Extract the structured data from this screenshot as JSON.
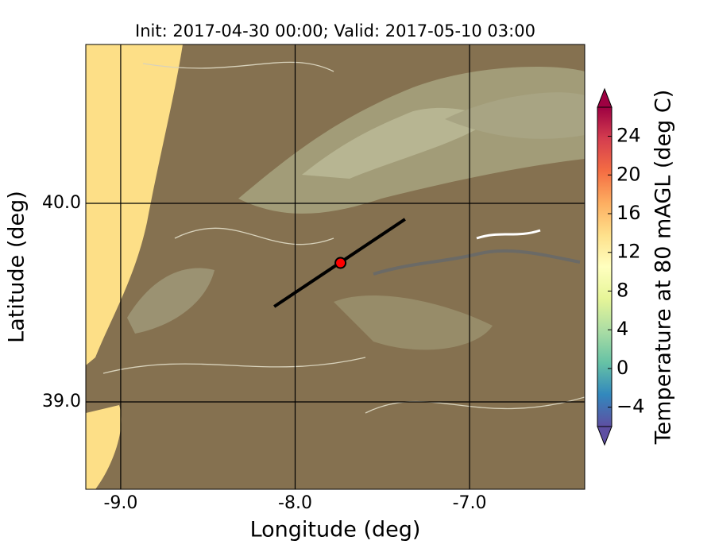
{
  "map": {
    "title": "Init: 2017-04-30 00:00; Valid: 2017-05-10 03:00",
    "xlabel": "Longitude (deg)",
    "ylabel": "Latitude (deg)",
    "xlim": [
      -9.2,
      -6.34
    ],
    "ylim": [
      38.56,
      40.8
    ],
    "xticks": [
      {
        "value": -9,
        "label": "-9.0"
      },
      {
        "value": -8,
        "label": "-8.0"
      },
      {
        "value": -7,
        "label": "-7.0"
      }
    ],
    "yticks": [
      {
        "value": 39,
        "label": "39.0"
      },
      {
        "value": 40,
        "label": "40.0"
      }
    ],
    "transect": {
      "lon": [
        -8.12,
        -7.37
      ],
      "lat": [
        39.48,
        39.92
      ],
      "color": "#000000"
    },
    "point": {
      "lon": -7.74,
      "lat": 39.7,
      "color": "#ff0000"
    },
    "colorbar": {
      "label": "Temperature at 80 mAGL (deg C)",
      "clim": [
        -6,
        27
      ],
      "ticks": [
        {
          "value": -4,
          "label": "−4"
        },
        0,
        4,
        8,
        12,
        16,
        20,
        24
      ],
      "colors": [
        "#5e4fa2",
        "#3288bd",
        "#66c2a5",
        "#abdda4",
        "#e6f598",
        "#ffffbf",
        "#fee08b",
        "#fdae61",
        "#f46d43",
        "#d53e4f",
        "#9e0142"
      ]
    }
  }
}
